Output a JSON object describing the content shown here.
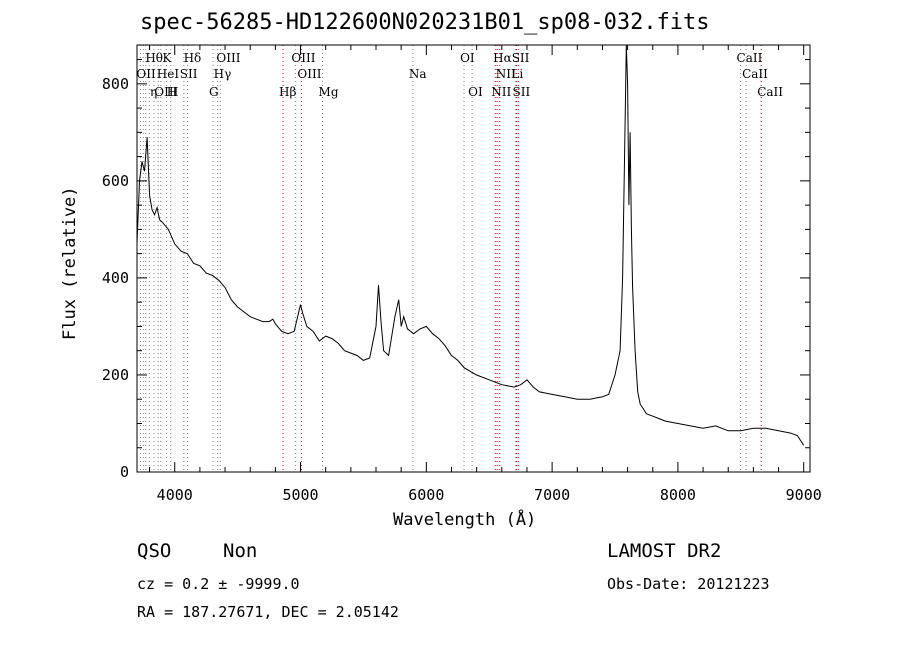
{
  "chart_data": {
    "type": "line",
    "title": "spec-56285-HD122600N020231B01_sp08-032.fits",
    "xlabel": "Wavelength (Å)",
    "ylabel": "Flux (relative)",
    "xlim": [
      3700,
      9050
    ],
    "ylim": [
      0,
      880
    ],
    "x_ticks": [
      4000,
      5000,
      6000,
      7000,
      8000,
      9000
    ],
    "y_ticks": [
      0,
      200,
      400,
      600,
      800
    ],
    "grid": false,
    "series": [
      {
        "x": [
          3700,
          3720,
          3740,
          3760,
          3780,
          3800,
          3820,
          3840,
          3860,
          3880,
          3900,
          3950,
          4000,
          4050,
          4100,
          4150,
          4200,
          4250,
          4300,
          4350,
          4400,
          4450,
          4500,
          4550,
          4600,
          4650,
          4700,
          4750,
          4780,
          4800,
          4850,
          4900,
          4950,
          5000,
          5020,
          5050,
          5100,
          5150,
          5200,
          5250,
          5300,
          5350,
          5400,
          5450,
          5500,
          5550,
          5600,
          5620,
          5640,
          5660,
          5700,
          5750,
          5780,
          5800,
          5820,
          5850,
          5900,
          5950,
          6000,
          6050,
          6100,
          6150,
          6200,
          6250,
          6300,
          6400,
          6500,
          6600,
          6700,
          6750,
          6800,
          6850,
          6900,
          7000,
          7100,
          7200,
          7300,
          7400,
          7450,
          7500,
          7540,
          7560,
          7580,
          7590,
          7600,
          7610,
          7620,
          7630,
          7640,
          7660,
          7680,
          7700,
          7750,
          7800,
          7850,
          7900,
          8000,
          8100,
          8200,
          8300,
          8400,
          8500,
          8600,
          8700,
          8800,
          8900,
          8950,
          9000
        ],
        "y": [
          470,
          600,
          640,
          620,
          690,
          570,
          540,
          530,
          545,
          520,
          515,
          500,
          470,
          455,
          450,
          430,
          425,
          410,
          405,
          395,
          380,
          355,
          340,
          330,
          320,
          315,
          310,
          310,
          315,
          305,
          290,
          285,
          290,
          345,
          325,
          300,
          290,
          270,
          280,
          275,
          265,
          250,
          245,
          240,
          230,
          235,
          300,
          385,
          310,
          250,
          240,
          320,
          355,
          300,
          320,
          295,
          285,
          295,
          300,
          285,
          275,
          260,
          240,
          230,
          215,
          200,
          190,
          180,
          175,
          180,
          190,
          175,
          165,
          160,
          155,
          150,
          150,
          155,
          160,
          200,
          250,
          400,
          720,
          880,
          800,
          550,
          700,
          500,
          380,
          250,
          165,
          140,
          120,
          115,
          110,
          105,
          100,
          95,
          90,
          95,
          85,
          85,
          90,
          90,
          85,
          80,
          75,
          55
        ]
      }
    ],
    "line_labels": [
      {
        "name": "Hθ",
        "x": 3798,
        "row": 1,
        "color": "#808080"
      },
      {
        "name": "K",
        "x": 3934,
        "row": 1,
        "color": "#808080"
      },
      {
        "name": "Hδ",
        "x": 4102,
        "row": 1,
        "color": "#808080"
      },
      {
        "name": "OIII",
        "x": 4363,
        "row": 1,
        "color": "#808080"
      },
      {
        "name": "OIII",
        "x": 4959,
        "row": 1,
        "color": "#808080"
      },
      {
        "name": "OI",
        "x": 6300,
        "row": 1,
        "color": "#808080"
      },
      {
        "name": "HαSII",
        "x": 6563,
        "row": 1,
        "color": "#808080"
      },
      {
        "name": "CaII",
        "x": 8498,
        "row": 1,
        "color": "#808080"
      },
      {
        "name": "OII",
        "x": 3727,
        "row": 2,
        "color": "#808080"
      },
      {
        "name": "HeI",
        "x": 3889,
        "row": 2,
        "color": "#808080"
      },
      {
        "name": "SII",
        "x": 4072,
        "row": 2,
        "color": "#808080"
      },
      {
        "name": "Hγ",
        "x": 4341,
        "row": 2,
        "color": "#808080"
      },
      {
        "name": "OIII",
        "x": 5007,
        "row": 2,
        "color": "#808080"
      },
      {
        "name": "Na",
        "x": 5893,
        "row": 2,
        "color": "#808080"
      },
      {
        "name": "NII",
        "x": 6584,
        "row": 2,
        "color": "#808080"
      },
      {
        "name": "Li",
        "x": 6708,
        "row": 2,
        "color": "#808080"
      },
      {
        "name": "CaII",
        "x": 8542,
        "row": 2,
        "color": "#808080"
      },
      {
        "name": "OIII",
        "x": 3869,
        "row": 3,
        "color": "#808080"
      },
      {
        "name": "η",
        "x": 3835,
        "row": 3,
        "color": "#808080"
      },
      {
        "name": "H",
        "x": 3968,
        "row": 3,
        "color": "#808080"
      },
      {
        "name": "G",
        "x": 4304,
        "row": 3,
        "color": "#808080"
      },
      {
        "name": "Hβ",
        "x": 4861,
        "row": 3,
        "color": "#808080"
      },
      {
        "name": "Mg",
        "x": 5175,
        "row": 3,
        "color": "#808080"
      },
      {
        "name": "OI",
        "x": 6364,
        "row": 3,
        "color": "#808080"
      },
      {
        "name": "NII",
        "x": 6548,
        "row": 3,
        "color": "#808080"
      },
      {
        "name": "SII",
        "x": 6717,
        "row": 3,
        "color": "#808080"
      },
      {
        "name": "CaII",
        "x": 8662,
        "row": 3,
        "color": "#808080"
      }
    ],
    "line_marker_wavelengths": [
      3727,
      3750,
      3770,
      3798,
      3835,
      3869,
      3889,
      3934,
      3968,
      4072,
      4102,
      4304,
      4341,
      4363,
      4861,
      4959,
      5007,
      5175,
      5893,
      6300,
      6364,
      6548,
      6563,
      6584,
      6708,
      6717,
      6731,
      8498,
      8542,
      8662
    ],
    "line_marker_colors": {
      "default": "#808080",
      "red": "#cc0000"
    }
  },
  "info": {
    "class": "QSO",
    "subclass": "Non",
    "survey": "LAMOST DR2",
    "cz": "cz = 0.2 ± -9999.0",
    "obs_date": "Obs-Date: 20121223",
    "radec": "RA = 187.27671, DEC =   2.05142"
  }
}
